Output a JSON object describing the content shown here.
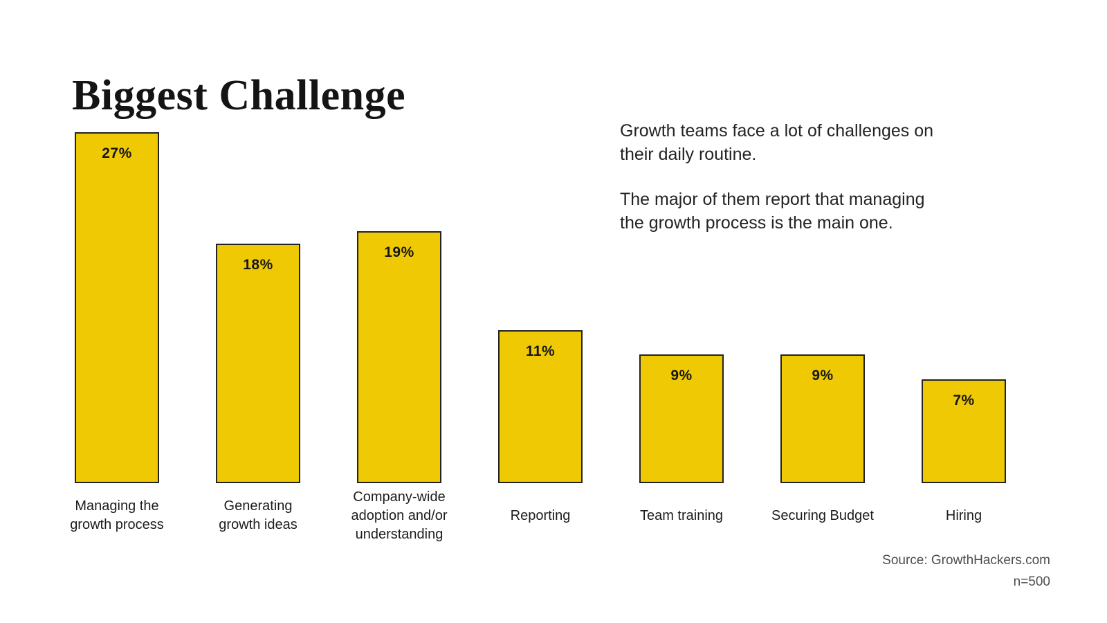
{
  "title": "Biggest Challenge",
  "annotation": {
    "para1": "Growth teams face a lot of challenges on\ntheir daily routine.",
    "para2": "The major of them report that managing\nthe growth process is the main one."
  },
  "source": {
    "line1": "Source: GrowthHackers.com",
    "line2": "n=500"
  },
  "colors": {
    "bar_fill": "#f0c905",
    "bar_border": "#222222",
    "title_text": "#141414",
    "body_text": "#232323",
    "source_text": "#4d4d4d"
  },
  "chart_data": {
    "type": "bar",
    "title": "Biggest Challenge",
    "categories": [
      "Managing the growth process",
      "Generating growth ideas",
      "Company-wide adoption and/or understanding",
      "Reporting",
      "Team training",
      "Securing Budget",
      "Hiring"
    ],
    "categories_display": [
      "Managing the\ngrowth process",
      "Generating\ngrowth ideas",
      "Company-wide\nadoption and/or\nunderstanding",
      "Reporting",
      "Team training",
      "Securing Budget",
      "Hiring"
    ],
    "values": [
      27,
      18,
      19,
      11,
      9,
      9,
      7
    ],
    "display_values": [
      "27%",
      "18%",
      "19%",
      "11%",
      "9%",
      "9%",
      "7%"
    ],
    "unit": "percent",
    "ylim": [
      0,
      27
    ],
    "grid": false,
    "legend": false,
    "value_labels": "inside-top",
    "annotation_note": "Growth teams face a lot of challenges on their daily routine. The major of them report that managing the growth process is the main one.",
    "source": "Source: GrowthHackers.com",
    "sample_size": "n=500"
  }
}
